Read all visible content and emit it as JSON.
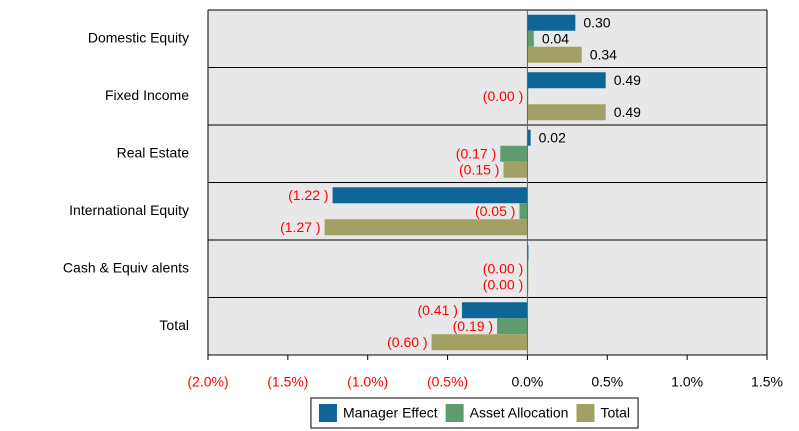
{
  "chart_data": {
    "type": "bar",
    "orientation": "horizontal",
    "categories": [
      "Domestic Equity",
      "Fixed Income",
      "Real Estate",
      "International Equity",
      "Cash & Equiv alents",
      "Total"
    ],
    "series": [
      {
        "name": "Manager Effect",
        "color": "#0f6597",
        "values": [
          0.3,
          0.49,
          0.02,
          -1.22,
          0,
          -0.41
        ],
        "value_labels": [
          "0.30",
          "0.49",
          "0.02",
          "(1.22 )",
          null,
          "(0.41 )"
        ]
      },
      {
        "name": "Asset Allocation",
        "color": "#5e9c70",
        "values": [
          0.04,
          -0.001,
          -0.17,
          -0.05,
          -0.001,
          -0.19
        ],
        "value_labels": [
          "0.04",
          "(0.00 )",
          "(0.17 )",
          "(0.05 )",
          "(0.00 )",
          "(0.19 )"
        ]
      },
      {
        "name": "Total",
        "color": "#a2a065",
        "values": [
          0.34,
          0.49,
          -0.15,
          -1.27,
          -0.001,
          -0.6
        ],
        "value_labels": [
          "0.34",
          "0.49",
          "(0.15 )",
          "(1.27 )",
          "(0.00 )",
          "(0.60 )"
        ]
      }
    ],
    "xlim": [
      -2.0,
      1.5
    ],
    "xticks": [
      {
        "value": -2.0,
        "label": "(2.0%)"
      },
      {
        "value": -1.5,
        "label": "(1.5%)"
      },
      {
        "value": -1.0,
        "label": "(1.0%)"
      },
      {
        "value": -0.5,
        "label": "(0.5%)"
      },
      {
        "value": 0,
        "label": "0.0%"
      },
      {
        "value": 0.5,
        "label": "0.5%"
      },
      {
        "value": 1.0,
        "label": "1.0%"
      },
      {
        "value": 1.5,
        "label": "1.5%"
      }
    ],
    "legend": "bottom"
  }
}
